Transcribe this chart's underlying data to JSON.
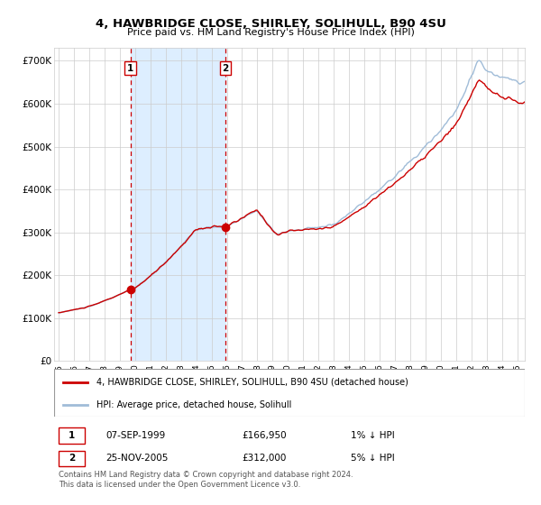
{
  "title1": "4, HAWBRIDGE CLOSE, SHIRLEY, SOLIHULL, B90 4SU",
  "title2": "Price paid vs. HM Land Registry's House Price Index (HPI)",
  "ylabel_ticks": [
    "£0",
    "£100K",
    "£200K",
    "£300K",
    "£400K",
    "£500K",
    "£600K",
    "£700K"
  ],
  "ytick_vals": [
    0,
    100000,
    200000,
    300000,
    400000,
    500000,
    600000,
    700000
  ],
  "ylim": [
    0,
    730000
  ],
  "sale1_date": "07-SEP-1999",
  "sale1_price": 166950,
  "sale1_year": 1999.69,
  "sale2_date": "25-NOV-2005",
  "sale2_price": 312000,
  "sale2_year": 2005.9,
  "sale1_hpi_pct": "1% ↓ HPI",
  "sale2_hpi_pct": "5% ↓ HPI",
  "legend_house": "4, HAWBRIDGE CLOSE, SHIRLEY, SOLIHULL, B90 4SU (detached house)",
  "legend_hpi": "HPI: Average price, detached house, Solihull",
  "footer": "Contains HM Land Registry data © Crown copyright and database right 2024.\nThis data is licensed under the Open Government Licence v3.0.",
  "house_line_color": "#cc0000",
  "hpi_line_color": "#a0bcd8",
  "shade_color": "#ddeeff",
  "dashed_color": "#cc0000",
  "background_color": "#ffffff",
  "grid_color": "#cccccc"
}
